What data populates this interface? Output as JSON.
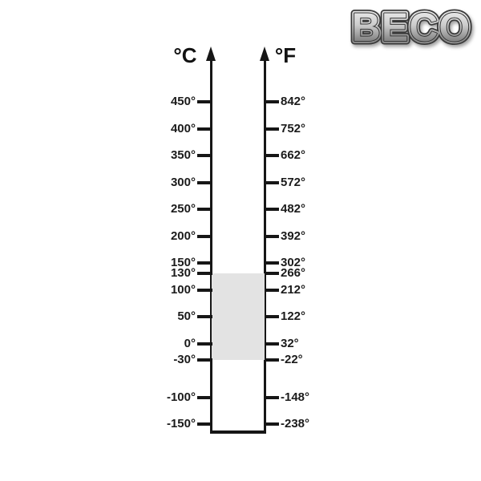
{
  "logo": {
    "text": "BECO"
  },
  "chart": {
    "celsius_header": "°C",
    "fahrenheit_header": "°F",
    "axis": {
      "top_c": 450,
      "bottom_c": -150
    },
    "line_color": "#161616",
    "highlight_range": {
      "from_c": 130,
      "to_c": -30,
      "color": "#e3e3e3"
    },
    "ticks": [
      {
        "c_value": 450,
        "c_label": "450°",
        "f_label": "842°"
      },
      {
        "c_value": 400,
        "c_label": "400°",
        "f_label": "752°"
      },
      {
        "c_value": 350,
        "c_label": "350°",
        "f_label": "662°"
      },
      {
        "c_value": 300,
        "c_label": "300°",
        "f_label": "572°"
      },
      {
        "c_value": 250,
        "c_label": "250°",
        "f_label": "482°"
      },
      {
        "c_value": 200,
        "c_label": "200°",
        "f_label": "392°"
      },
      {
        "c_value": 150,
        "c_label": "150°",
        "f_label": "302°"
      },
      {
        "c_value": 130,
        "c_label": "130°",
        "f_label": "266°"
      },
      {
        "c_value": 100,
        "c_label": "100°",
        "f_label": "212°"
      },
      {
        "c_value": 50,
        "c_label": "50°",
        "f_label": "122°"
      },
      {
        "c_value": 0,
        "c_label": "0°",
        "f_label": "32°"
      },
      {
        "c_value": -30,
        "c_label": "-30°",
        "f_label": "-22°"
      },
      {
        "c_value": -100,
        "c_label": "-100°",
        "f_label": "-148°"
      },
      {
        "c_value": -150,
        "c_label": "-150°",
        "f_label": "-238°"
      }
    ]
  },
  "chart_data": {
    "type": "scale",
    "axes": [
      {
        "label": "°C",
        "side": "left",
        "ticks": [
          450,
          400,
          350,
          300,
          250,
          200,
          150,
          130,
          100,
          50,
          0,
          -30,
          -100,
          -150
        ]
      },
      {
        "label": "°F",
        "side": "right",
        "ticks": [
          842,
          752,
          662,
          572,
          482,
          392,
          302,
          266,
          212,
          122,
          32,
          -22,
          -148,
          -238
        ]
      }
    ],
    "axis_range_c": [
      -150,
      450
    ],
    "highlighted_band_c": [
      -30,
      130
    ],
    "highlighted_band_f": [
      -22,
      266
    ],
    "grid": false,
    "legend": "none"
  }
}
